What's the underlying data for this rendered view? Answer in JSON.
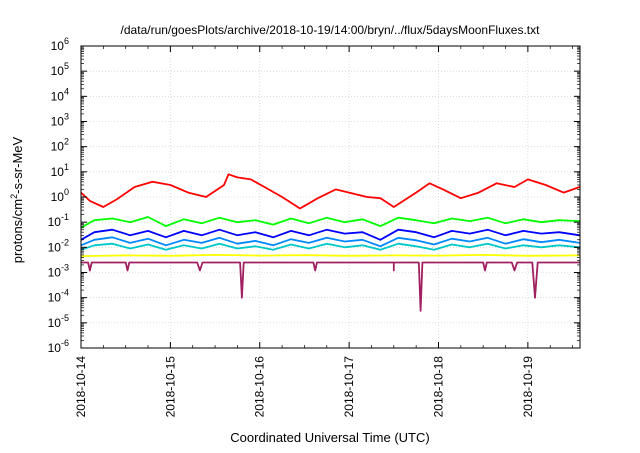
{
  "chart_data": {
    "type": "line",
    "title": "/data/run/goesPlots/archive/2018-10-19/14:00/bryn/../flux/5daysMoonFluxes.txt",
    "xlabel": "Coordinated Universal Time (UTC)",
    "ylabel_parts": [
      "protons/cm",
      "2",
      "-s-sr-MeV"
    ],
    "yscale": "log",
    "ylim_exp": [
      -6,
      6
    ],
    "xlim_days": [
      "2018-10-14T00:00",
      "2018-10-19T14:00"
    ],
    "x_ticks": [
      "2018-10-14",
      "2018-10-15",
      "2018-10-16",
      "2018-10-17",
      "2018-10-18",
      "2018-10-19"
    ],
    "y_ticks": [
      {
        "base": "10",
        "exp": "-6"
      },
      {
        "base": "10",
        "exp": "-5"
      },
      {
        "base": "10",
        "exp": "-4"
      },
      {
        "base": "10",
        "exp": "-3"
      },
      {
        "base": "10",
        "exp": "-2"
      },
      {
        "base": "10",
        "exp": "-1"
      },
      {
        "base": "10",
        "exp": "0"
      },
      {
        "base": "10",
        "exp": "1"
      },
      {
        "base": "10",
        "exp": "2"
      },
      {
        "base": "10",
        "exp": "3"
      },
      {
        "base": "10",
        "exp": "4"
      },
      {
        "base": "10",
        "exp": "5"
      },
      {
        "base": "10",
        "exp": "6"
      }
    ],
    "grid": true,
    "legend": "none",
    "series": [
      {
        "color": "#ff0000",
        "x": [
          0.0,
          0.1,
          0.25,
          0.4,
          0.6,
          0.8,
          1.0,
          1.2,
          1.4,
          1.6,
          1.65,
          1.75,
          1.9,
          2.1,
          2.25,
          2.45,
          2.65,
          2.85,
          3.0,
          3.2,
          3.35,
          3.5,
          3.75,
          3.9,
          4.05,
          4.25,
          4.45,
          4.65,
          4.85,
          5.0,
          5.2,
          5.4,
          5.58
        ],
        "y": [
          1.5,
          0.7,
          0.4,
          0.8,
          2.5,
          4.0,
          3.0,
          1.5,
          1.0,
          3.0,
          8.0,
          6.0,
          5.0,
          2.0,
          1.0,
          0.35,
          0.9,
          2.0,
          1.5,
          1.0,
          0.9,
          0.4,
          1.5,
          3.5,
          2.0,
          0.9,
          1.5,
          3.5,
          2.5,
          5.0,
          3.0,
          1.5,
          2.5
        ]
      },
      {
        "color": "#00ff00",
        "x": [
          0.0,
          0.15,
          0.35,
          0.55,
          0.75,
          0.95,
          1.15,
          1.35,
          1.55,
          1.75,
          1.95,
          2.15,
          2.35,
          2.55,
          2.75,
          2.95,
          3.15,
          3.35,
          3.55,
          3.75,
          3.95,
          4.15,
          4.35,
          4.55,
          4.75,
          4.95,
          5.15,
          5.35,
          5.58
        ],
        "y": [
          0.06,
          0.12,
          0.14,
          0.1,
          0.16,
          0.07,
          0.13,
          0.09,
          0.15,
          0.1,
          0.12,
          0.08,
          0.14,
          0.09,
          0.15,
          0.1,
          0.13,
          0.07,
          0.15,
          0.12,
          0.09,
          0.14,
          0.11,
          0.15,
          0.09,
          0.13,
          0.1,
          0.12,
          0.11
        ]
      },
      {
        "color": "#0000ff",
        "x": [
          0.0,
          0.15,
          0.35,
          0.55,
          0.75,
          0.95,
          1.15,
          1.35,
          1.55,
          1.75,
          1.95,
          2.15,
          2.35,
          2.55,
          2.75,
          2.95,
          3.15,
          3.35,
          3.55,
          3.75,
          3.95,
          4.15,
          4.35,
          4.55,
          4.75,
          4.95,
          5.15,
          5.35,
          5.58
        ],
        "y": [
          0.02,
          0.04,
          0.05,
          0.03,
          0.045,
          0.025,
          0.045,
          0.03,
          0.05,
          0.03,
          0.04,
          0.025,
          0.045,
          0.03,
          0.05,
          0.035,
          0.04,
          0.02,
          0.05,
          0.04,
          0.025,
          0.045,
          0.035,
          0.05,
          0.03,
          0.045,
          0.035,
          0.04,
          0.03
        ]
      },
      {
        "color": "#0088ff",
        "x": [
          0.0,
          0.15,
          0.35,
          0.55,
          0.75,
          0.95,
          1.15,
          1.35,
          1.55,
          1.75,
          1.95,
          2.15,
          2.35,
          2.55,
          2.75,
          2.95,
          3.15,
          3.35,
          3.55,
          3.75,
          3.95,
          4.15,
          4.35,
          4.55,
          4.75,
          4.95,
          5.15,
          5.35,
          5.58
        ],
        "y": [
          0.012,
          0.02,
          0.025,
          0.015,
          0.022,
          0.012,
          0.02,
          0.015,
          0.024,
          0.014,
          0.018,
          0.012,
          0.021,
          0.015,
          0.024,
          0.017,
          0.02,
          0.011,
          0.024,
          0.019,
          0.013,
          0.022,
          0.017,
          0.024,
          0.014,
          0.021,
          0.016,
          0.02,
          0.015
        ]
      },
      {
        "color": "#00c8c8",
        "x": [
          0.0,
          0.15,
          0.35,
          0.55,
          0.75,
          0.95,
          1.15,
          1.35,
          1.55,
          1.75,
          1.95,
          2.15,
          2.35,
          2.55,
          2.75,
          2.95,
          3.15,
          3.35,
          3.55,
          3.75,
          3.95,
          4.15,
          4.35,
          4.55,
          4.75,
          4.95,
          5.15,
          5.35,
          5.58
        ],
        "y": [
          0.008,
          0.012,
          0.014,
          0.009,
          0.013,
          0.008,
          0.012,
          0.009,
          0.014,
          0.009,
          0.011,
          0.008,
          0.013,
          0.009,
          0.014,
          0.01,
          0.012,
          0.008,
          0.014,
          0.011,
          0.008,
          0.013,
          0.01,
          0.014,
          0.009,
          0.012,
          0.01,
          0.012,
          0.01
        ]
      },
      {
        "color": "#ffff00",
        "x": [
          0.0,
          0.5,
          1.0,
          1.5,
          2.0,
          2.5,
          3.0,
          3.5,
          4.0,
          4.5,
          5.0,
          5.58
        ],
        "y": [
          0.0045,
          0.0048,
          0.0046,
          0.005,
          0.0047,
          0.0049,
          0.0046,
          0.0048,
          0.0047,
          0.005,
          0.0046,
          0.0048
        ]
      },
      {
        "color": "#a02060",
        "x": [
          0.0,
          0.08,
          0.1,
          0.12,
          0.3,
          0.5,
          0.52,
          0.54,
          0.7,
          1.0,
          1.3,
          1.33,
          1.36,
          1.6,
          1.78,
          1.8,
          1.82,
          2.1,
          2.4,
          2.6,
          2.62,
          2.64,
          2.9,
          3.2,
          3.5,
          3.5,
          3.5,
          3.78,
          3.8,
          3.82,
          4.1,
          4.4,
          4.5,
          4.52,
          4.54,
          4.82,
          4.85,
          4.88,
          5.05,
          5.08,
          5.11,
          5.3,
          5.58
        ],
        "y": [
          0.0025,
          0.0025,
          0.0012,
          0.0025,
          0.0025,
          0.0025,
          0.0012,
          0.0025,
          0.0025,
          0.0025,
          0.0025,
          0.0012,
          0.0025,
          0.0025,
          0.0025,
          0.0001,
          0.0025,
          0.0025,
          0.0025,
          0.0025,
          0.0012,
          0.0025,
          0.0025,
          0.0025,
          0.0025,
          0.0012,
          0.0025,
          0.0025,
          3e-05,
          0.0025,
          0.0025,
          0.0025,
          0.0025,
          0.0012,
          0.0025,
          0.0025,
          0.0012,
          0.0025,
          0.0025,
          0.0001,
          0.0025,
          0.0025,
          0.0025
        ]
      }
    ]
  }
}
